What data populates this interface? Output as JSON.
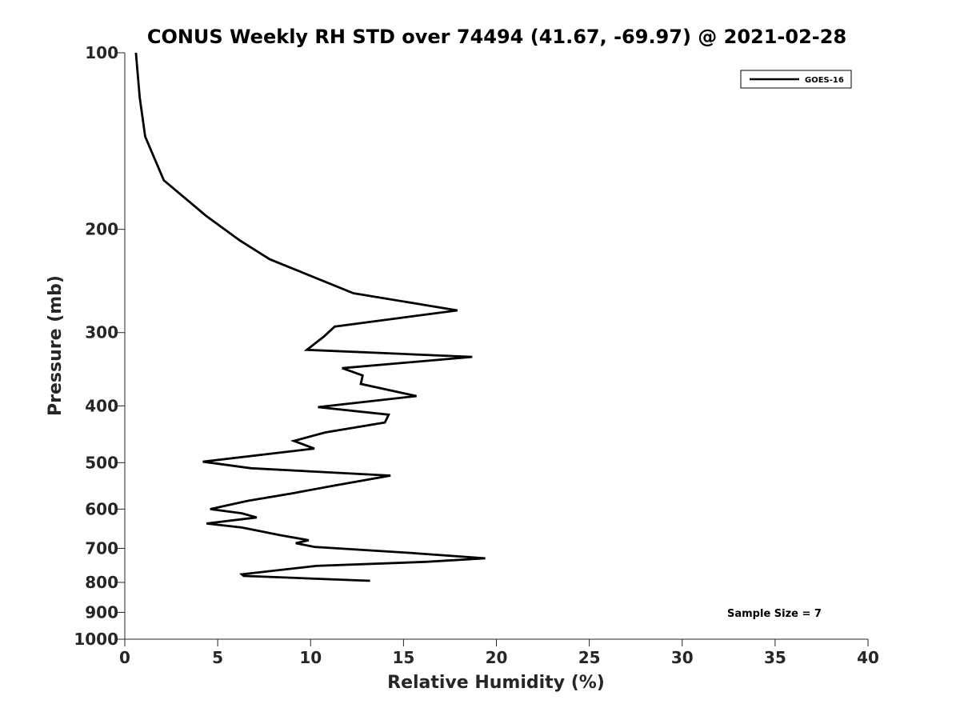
{
  "chart_data": {
    "type": "line",
    "title": "CONUS Weekly RH STD over 74494 (41.67, -69.97) @ 2021-02-28",
    "xlabel": "Relative Humidity (%)",
    "ylabel": "Pressure (mb)",
    "xlim": [
      0,
      40
    ],
    "ylim": [
      1000,
      100
    ],
    "yscale": "log",
    "y_reversed": true,
    "x_ticks": [
      0,
      5,
      10,
      15,
      20,
      25,
      30,
      35,
      40
    ],
    "y_ticks": [
      100,
      200,
      300,
      400,
      500,
      600,
      700,
      800,
      900,
      1000
    ],
    "grid": false,
    "legend_position": "top-right",
    "annotation": "Sample Size = 7",
    "series": [
      {
        "name": "GOES-16",
        "color": "#000000",
        "points": [
          [
            0.6,
            100
          ],
          [
            0.8,
            119
          ],
          [
            1.1,
            139
          ],
          [
            2.1,
            165
          ],
          [
            4.4,
            190
          ],
          [
            6.2,
            209
          ],
          [
            7.8,
            225
          ],
          [
            12.3,
            257
          ],
          [
            17.9,
            275
          ],
          [
            11.3,
            293
          ],
          [
            10.7,
            305
          ],
          [
            9.8,
            321
          ],
          [
            18.7,
            330
          ],
          [
            11.7,
            345
          ],
          [
            12.8,
            355
          ],
          [
            12.7,
            367
          ],
          [
            15.7,
            385
          ],
          [
            10.4,
            402
          ],
          [
            14.2,
            414
          ],
          [
            14.0,
            427
          ],
          [
            10.8,
            444
          ],
          [
            9.1,
            459
          ],
          [
            10.2,
            473
          ],
          [
            4.2,
            498
          ],
          [
            6.8,
            511
          ],
          [
            14.3,
            526
          ],
          [
            11.3,
            547
          ],
          [
            9.0,
            564
          ],
          [
            6.6,
            581
          ],
          [
            4.6,
            600
          ],
          [
            6.3,
            610
          ],
          [
            7.1,
            620
          ],
          [
            4.4,
            635
          ],
          [
            6.3,
            645
          ],
          [
            8.4,
            665
          ],
          [
            9.9,
            678
          ],
          [
            9.2,
            686
          ],
          [
            10.2,
            696
          ],
          [
            15.2,
            712
          ],
          [
            19.4,
            728
          ],
          [
            16.2,
            738
          ],
          [
            10.3,
            750
          ],
          [
            6.3,
            775
          ],
          [
            6.4,
            780
          ],
          [
            13.2,
            795
          ]
        ]
      }
    ]
  }
}
